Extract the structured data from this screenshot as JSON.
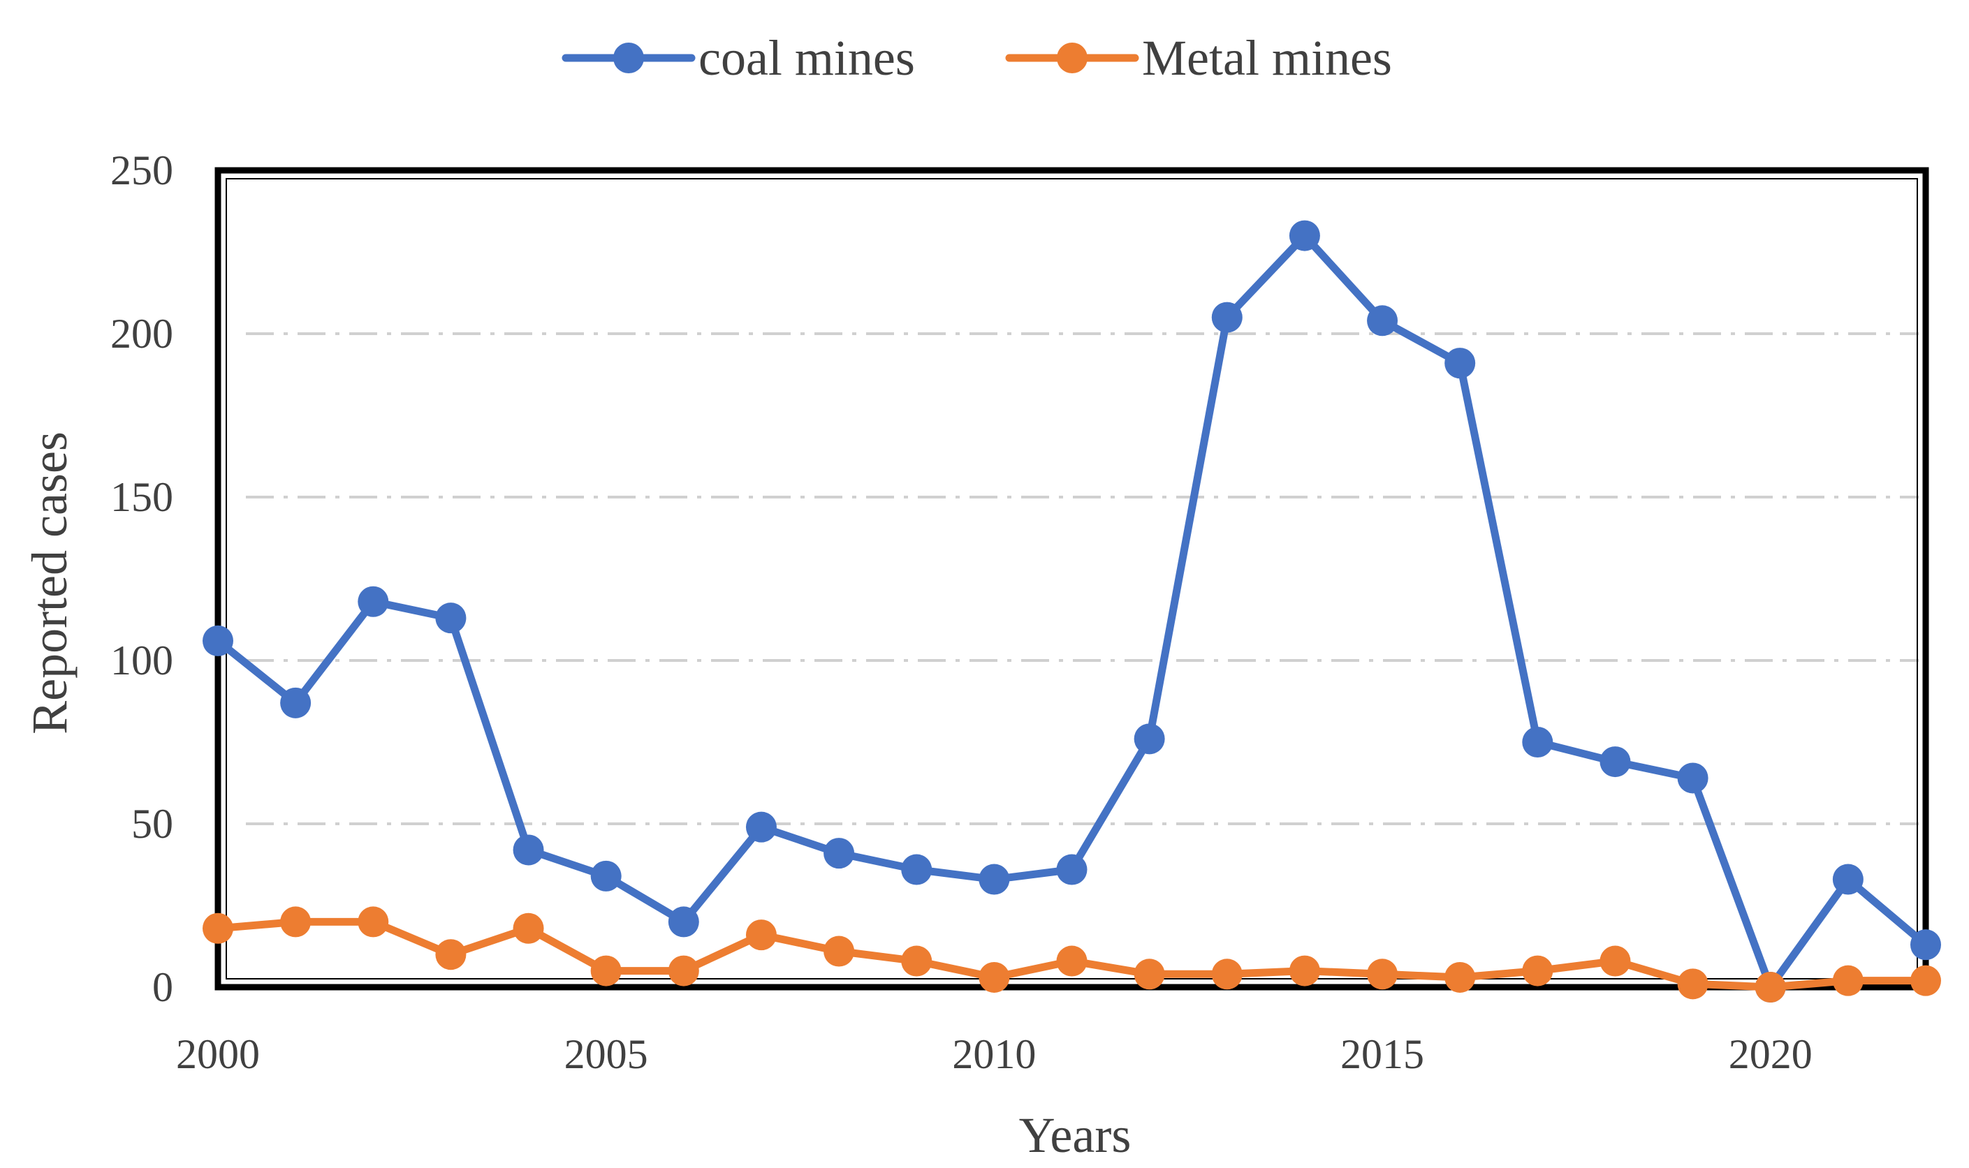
{
  "chart_data": {
    "type": "line",
    "title": "",
    "xlabel": "Years",
    "ylabel": "Reported cases",
    "x": [
      2000,
      2001,
      2002,
      2003,
      2004,
      2005,
      2006,
      2007,
      2008,
      2009,
      2010,
      2011,
      2012,
      2013,
      2014,
      2015,
      2016,
      2017,
      2018,
      2019,
      2020,
      2021,
      2022
    ],
    "xlim": [
      2000,
      2022
    ],
    "ylim": [
      0,
      250
    ],
    "x_ticks": [
      "2000",
      "2005",
      "2010",
      "2015",
      "2020"
    ],
    "y_ticks": [
      "0",
      "50",
      "100",
      "150",
      "200",
      "250"
    ],
    "grid": "horizontal dash-dot",
    "legend_position": "top-center",
    "series": [
      {
        "name": "coal mines",
        "color": "#4472C4",
        "values": [
          106,
          87,
          118,
          113,
          42,
          34,
          20,
          49,
          41,
          36,
          33,
          36,
          76,
          205,
          230,
          204,
          191,
          75,
          69,
          64,
          0,
          33,
          13
        ]
      },
      {
        "name": "Metal mines",
        "color": "#ED7D31",
        "values": [
          18,
          20,
          20,
          10,
          18,
          5,
          5,
          16,
          11,
          8,
          3,
          8,
          4,
          4,
          5,
          4,
          3,
          5,
          8,
          1,
          0,
          2,
          2
        ]
      }
    ]
  }
}
